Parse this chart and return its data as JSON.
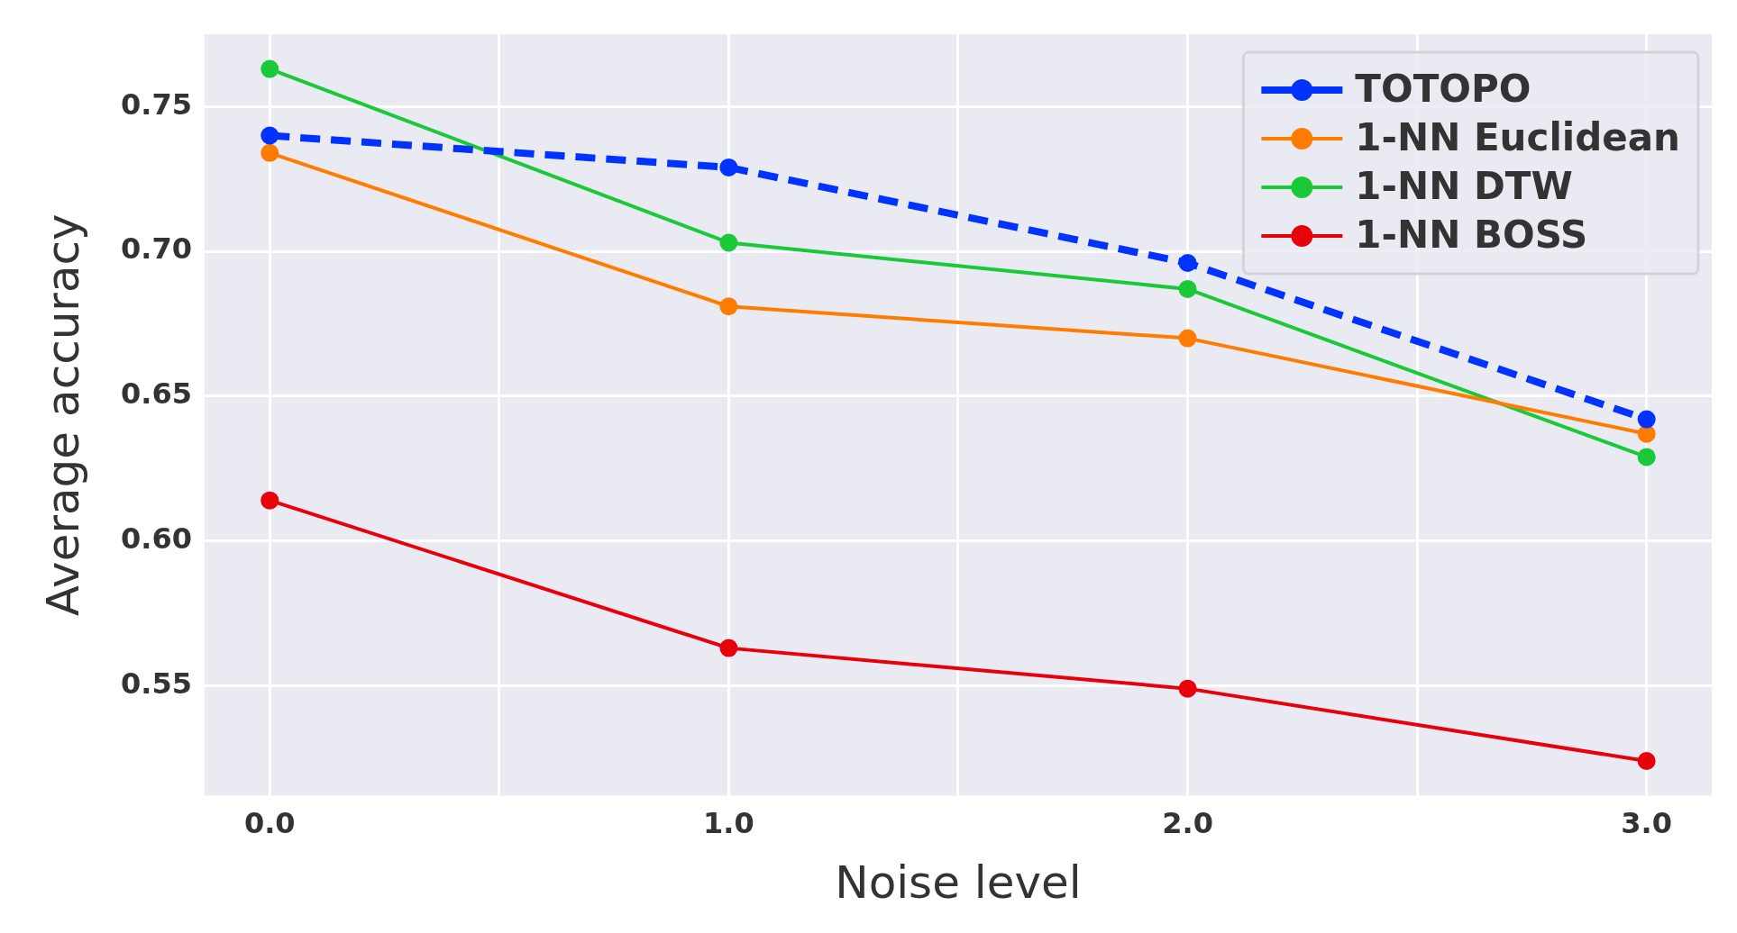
{
  "chart_data": {
    "type": "line",
    "xlabel": "Noise level",
    "ylabel": "Average accuracy",
    "x": [
      0,
      1,
      2,
      3
    ],
    "series": [
      {
        "name": "TOTOPO",
        "color": "#0033ff",
        "line_style": "dashed",
        "values": [
          0.74,
          0.729,
          0.696,
          0.642
        ]
      },
      {
        "name": "1-NN Euclidean",
        "color": "#ff7c00",
        "values": [
          0.734,
          0.681,
          0.67,
          0.637
        ]
      },
      {
        "name": "1-NN DTW",
        "color": "#1ac938",
        "values": [
          0.763,
          0.703,
          0.687,
          0.629
        ]
      },
      {
        "name": "1-NN BOSS",
        "color": "#e8000b",
        "values": [
          0.614,
          0.563,
          0.549,
          0.524
        ]
      }
    ],
    "xlim": [
      -0.142,
      3.142
    ],
    "ylim": [
      0.512,
      0.775
    ],
    "xticks": [
      {
        "value": 0,
        "label": "0.0"
      },
      {
        "value": 0.5,
        "label": null
      },
      {
        "value": 1,
        "label": "1.0"
      },
      {
        "value": 1.5,
        "label": null
      },
      {
        "value": 2,
        "label": "2.0"
      },
      {
        "value": 2.5,
        "label": null
      },
      {
        "value": 3,
        "label": "3.0"
      }
    ],
    "yticks": [
      {
        "value": 0.55,
        "label": "0.55"
      },
      {
        "value": 0.6,
        "label": "0.60"
      },
      {
        "value": 0.65,
        "label": "0.65"
      },
      {
        "value": 0.7,
        "label": "0.70"
      },
      {
        "value": 0.75,
        "label": "0.75"
      }
    ],
    "grid": true,
    "legend": "top right",
    "marker": "circle",
    "line_style": "solid"
  }
}
